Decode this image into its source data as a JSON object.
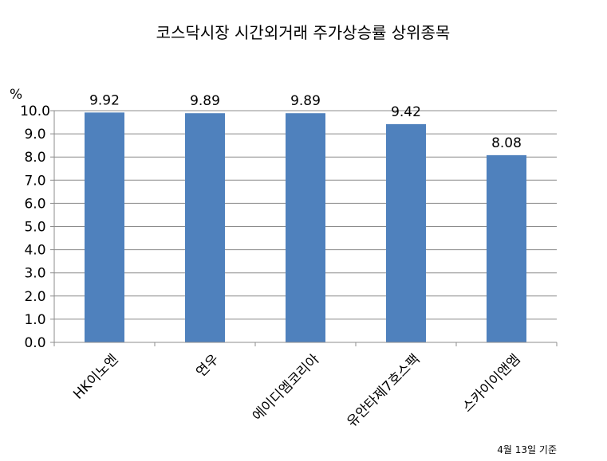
{
  "chart_data": {
    "type": "bar",
    "title": "코스닥시장 시간외거래  주가상승률 상위종목",
    "ylabel": "%",
    "xlabel": "",
    "categories": [
      "HK이노엔",
      "연우",
      "에이디엠코리아",
      "유안타제7호스팩",
      "스카이이앤엠"
    ],
    "values": [
      9.92,
      9.89,
      9.89,
      9.42,
      8.08
    ],
    "value_labels": [
      "9.92",
      "9.89",
      "9.89",
      "9.42",
      "8.08"
    ],
    "ylim": [
      0,
      10
    ],
    "yticks": [
      "0.0",
      "1.0",
      "2.0",
      "3.0",
      "4.0",
      "5.0",
      "6.0",
      "7.0",
      "8.0",
      "9.0",
      "10.0"
    ],
    "bar_color": "#4F81BD",
    "grid": true,
    "legend": "none"
  },
  "footnote": "4월 13일 기준"
}
